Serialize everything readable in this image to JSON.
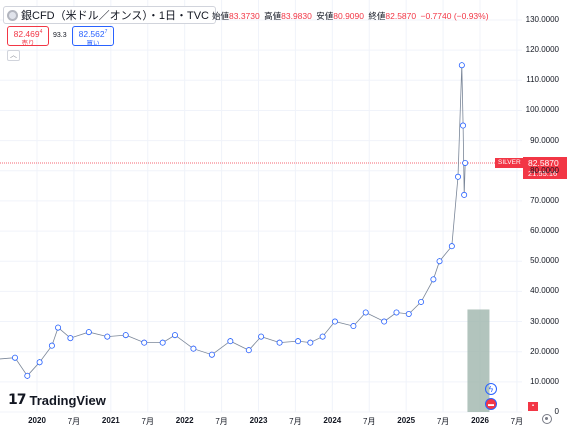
{
  "header": {
    "symbol_title": "銀CFD（米ドル／オンス）・1日・TVC",
    "open_label": "始値",
    "open_value": "83.3730",
    "high_label": "高値",
    "high_value": "83.9830",
    "low_label": "安値",
    "low_value": "80.9090",
    "close_label": "終値",
    "close_value": "82.5870",
    "change": "−0.7740 (−0.93%)"
  },
  "trade": {
    "sell_price": "82.469",
    "sell_super": "4",
    "sell_label": "売り",
    "spread": "93.3",
    "buy_price": "82.562",
    "buy_super": "7",
    "buy_label": "買い"
  },
  "price_label": {
    "series": "SILVER",
    "price": "82.5870",
    "countdown": "21:55:16"
  },
  "brand": {
    "name": "TradingView"
  },
  "colors": {
    "up": "#089981",
    "down": "#f23645",
    "accent": "#2962ff",
    "price_line": "#f23645"
  },
  "icons": {
    "symbol": "silver-coin-icon",
    "collapse": "chevron-up-icon",
    "settings": "gear-icon",
    "event_lightning": "lightning-icon",
    "event_flag": "flag-icon"
  },
  "y_axis": {
    "ticks": [
      "130.0000",
      "120.0000",
      "110.0000",
      "100.0000",
      "90.0000",
      "80.0000",
      "70.0000",
      "60.0000",
      "50.0000",
      "40.0000",
      "30.0000",
      "20.0000",
      "10.0000",
      "0"
    ]
  },
  "x_axis": {
    "ticks": [
      "2020",
      "7月",
      "2021",
      "7月",
      "2022",
      "7月",
      "2023",
      "7月",
      "2024",
      "7月",
      "2025",
      "7月",
      "2026",
      "7月"
    ]
  },
  "chart_data": {
    "type": "line",
    "title": "",
    "xlabel": "",
    "ylabel": "",
    "ylim": [
      0,
      130
    ],
    "x": [
      "2019-07",
      "2019-10",
      "2020-01",
      "2020-03",
      "2020-05",
      "2020-07",
      "2020-08",
      "2020-10",
      "2021-01",
      "2021-04",
      "2021-07",
      "2021-10",
      "2022-01",
      "2022-03",
      "2022-06",
      "2022-09",
      "2022-12",
      "2023-03",
      "2023-05",
      "2023-08",
      "2023-11",
      "2024-01",
      "2024-03",
      "2024-05",
      "2024-08",
      "2024-10",
      "2025-01",
      "2025-03",
      "2025-05",
      "2025-07",
      "2025-09",
      "2025-10",
      "2025-12",
      "2026-01",
      "2026-01-20",
      "2026-01-26",
      "2026-02-01",
      "2026-02-06"
    ],
    "series": [
      {
        "values": [
          16,
          17.5,
          18,
          12,
          16.5,
          22,
          28,
          24.5,
          26.5,
          25,
          25.5,
          23,
          23,
          25.5,
          21,
          19,
          23.5,
          20.5,
          25,
          23,
          23.5,
          23,
          25,
          30,
          28.5,
          33,
          30,
          33,
          32.5,
          36.5,
          44,
          50,
          55,
          78,
          115,
          95,
          72,
          82.59
        ]
      }
    ]
  },
  "highlight_bar": {
    "value": 34
  }
}
